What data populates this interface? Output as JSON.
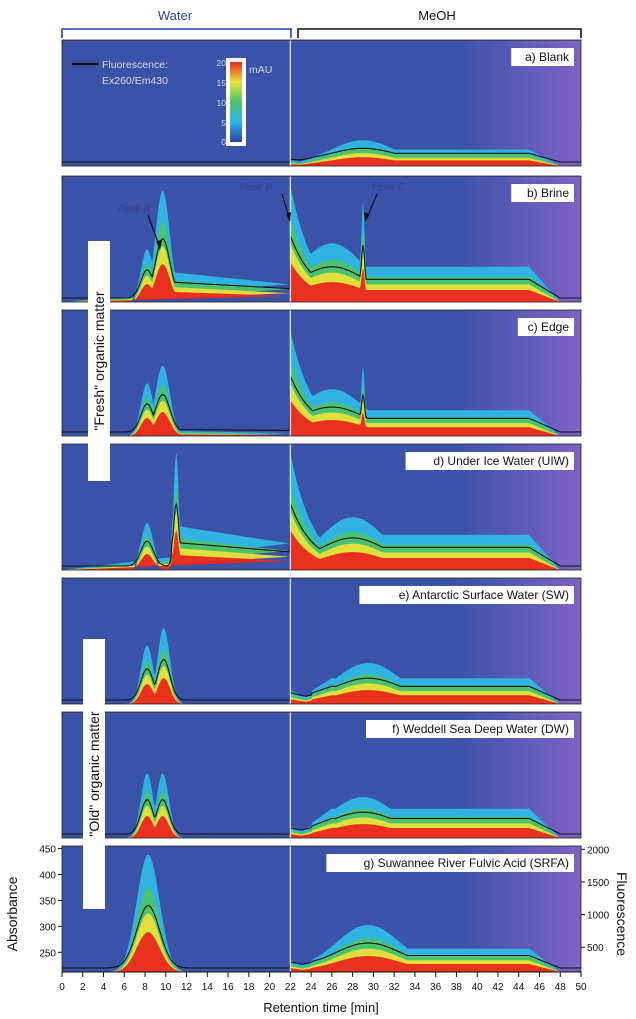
{
  "chart_data": {
    "type": "heatmap",
    "phases": {
      "water_label": "Water",
      "meoh_label": "MeOH"
    },
    "xlabel": "Retention time [min]",
    "x_ticks": [
      0,
      2,
      4,
      6,
      8,
      10,
      12,
      14,
      16,
      18,
      20,
      22,
      24,
      26,
      28,
      30,
      32,
      34,
      36,
      38,
      40,
      42,
      44,
      46,
      48,
      50
    ],
    "xlim": [
      0,
      50
    ],
    "left_axis": {
      "label": "Absorbance",
      "ticks": [
        250,
        300,
        350,
        400,
        450
      ]
    },
    "right_axis": {
      "label": "Fluorescence",
      "ticks": [
        500,
        1000,
        1500,
        2000
      ]
    },
    "legend": {
      "line_label_1": "Fluorescence:",
      "line_label_2": "Ex260/Em430",
      "colorbar_title": "mAU",
      "colorbar_ticks": [
        "20",
        "15",
        "10",
        "5",
        "0"
      ]
    },
    "group_labels": {
      "fresh": "\"Fresh\" organic matter",
      "old": "\"Old\" organic matter"
    },
    "peak_labels": {
      "a": "Peak A",
      "b": "Peak B",
      "c": "Peak C"
    },
    "colors": {
      "background": "#3a52a8",
      "low": "#2fb8e6",
      "mid": "#4cc46a",
      "high": "#e8e23a",
      "max": "#e8281e",
      "line": "#111111",
      "purple": "#8a66c8"
    },
    "panels": [
      {
        "label": "a) Blank",
        "water_peaks": [],
        "water_floor": 0,
        "meoh_start": 0.05,
        "meoh_peak": 0.22,
        "meoh_center": 29,
        "meoh_tail": 0.14,
        "meoh_spike": 0
      },
      {
        "label": "b) Brine",
        "water_peaks": [
          {
            "x": 8.2,
            "h": 0.45,
            "w": 0.6
          },
          {
            "x": 9.7,
            "h": 0.95,
            "w": 0.7
          }
        ],
        "water_floor": 0.3,
        "meoh_start": 1.0,
        "meoh_peak": 0.5,
        "meoh_center": 26,
        "meoh_tail": 0.3,
        "meoh_spike": 0.85
      },
      {
        "label": "c) Edge",
        "water_peaks": [
          {
            "x": 8.2,
            "h": 0.45,
            "w": 0.6
          },
          {
            "x": 9.7,
            "h": 0.6,
            "w": 0.7
          }
        ],
        "water_floor": 0.05,
        "meoh_start": 0.9,
        "meoh_peak": 0.4,
        "meoh_center": 26,
        "meoh_tail": 0.22,
        "meoh_spike": 0.6
      },
      {
        "label": "d) Under Ice Water (UIW)",
        "water_peaks": [
          {
            "x": 8.2,
            "h": 0.4,
            "w": 0.6
          },
          {
            "x": 11.0,
            "h": 1.0,
            "w": 0.25
          }
        ],
        "water_floor": 0.45,
        "meoh_start": 1.0,
        "meoh_peak": 0.45,
        "meoh_center": 28,
        "meoh_tail": 0.3,
        "meoh_spike": 0
      },
      {
        "label": "e) Antarctic Surface Water (SW)",
        "water_peaks": [
          {
            "x": 8.2,
            "h": 0.5,
            "w": 0.6
          },
          {
            "x": 9.8,
            "h": 0.65,
            "w": 0.6
          }
        ],
        "water_floor": 0,
        "meoh_start": 0.12,
        "meoh_peak": 0.35,
        "meoh_center": 29.5,
        "meoh_tail": 0.22,
        "meoh_spike": 0
      },
      {
        "label": "f) Weddell Sea Deep Water (DW)",
        "water_peaks": [
          {
            "x": 8.2,
            "h": 0.55,
            "w": 0.6
          },
          {
            "x": 9.7,
            "h": 0.55,
            "w": 0.6
          }
        ],
        "water_floor": 0,
        "meoh_start": 0.1,
        "meoh_peak": 0.35,
        "meoh_center": 29,
        "meoh_tail": 0.25,
        "meoh_spike": 0
      },
      {
        "label": "g) Suwannee River Fulvic Acid (SRFA)",
        "water_peaks": [
          {
            "x": 8.3,
            "h": 1.0,
            "w": 1.1
          }
        ],
        "water_floor": 0,
        "meoh_start": 0.1,
        "meoh_peak": 0.4,
        "meoh_center": 29.5,
        "meoh_tail": 0.2,
        "meoh_spike": 0
      }
    ]
  }
}
